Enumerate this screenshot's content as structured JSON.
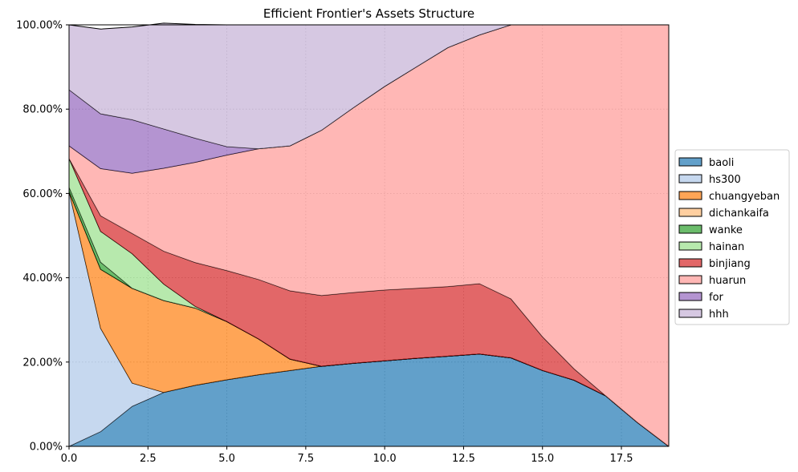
{
  "chart_data": {
    "type": "area",
    "stacked": true,
    "title": "Efficient Frontier's Assets Structure",
    "xlabel": "",
    "ylabel": "",
    "xlim": [
      0,
      19
    ],
    "ylim": [
      0,
      1
    ],
    "x_ticks": [
      0,
      2.5,
      5,
      7.5,
      10,
      12.5,
      15,
      17.5
    ],
    "x_tick_labels": [
      "0.0",
      "2.5",
      "5.0",
      "7.5",
      "10.0",
      "12.5",
      "15.0",
      "17.5"
    ],
    "y_ticks": [
      0,
      0.2,
      0.4,
      0.6,
      0.8,
      1.0
    ],
    "y_tick_labels": [
      "0.00%",
      "20.00%",
      "40.00%",
      "60.00%",
      "80.00%",
      "100.00%"
    ],
    "grid": true,
    "legend_position": "right",
    "x": [
      0,
      1,
      2,
      3,
      4,
      5,
      6,
      7,
      8,
      9,
      10,
      11,
      12,
      13,
      14,
      15,
      16,
      17,
      18,
      19
    ],
    "series": [
      {
        "name": "baoli",
        "color": "#1f77b4",
        "values": [
          0.0,
          0.035,
          0.095,
          0.128,
          0.145,
          0.158,
          0.17,
          0.18,
          0.19,
          0.197,
          0.203,
          0.209,
          0.214,
          0.219,
          0.21,
          0.18,
          0.157,
          0.12,
          0.057,
          0.0
        ]
      },
      {
        "name": "hs300",
        "color": "#aec7e8",
        "values": [
          0.605,
          0.245,
          0.055,
          0.0,
          0.0,
          0.0,
          0.0,
          0.0,
          0.0,
          0.0,
          0.0,
          0.0,
          0.0,
          0.0,
          0.0,
          0.0,
          0.0,
          0.0,
          0.0,
          0.0
        ]
      },
      {
        "name": "chuangyeban",
        "color": "#ff7f0e",
        "values": [
          0.0,
          0.14,
          0.225,
          0.218,
          0.183,
          0.138,
          0.085,
          0.027,
          0.0,
          0.0,
          0.0,
          0.0,
          0.0,
          0.0,
          0.0,
          0.0,
          0.0,
          0.0,
          0.0,
          0.0
        ]
      },
      {
        "name": "dichankaifa",
        "color": "#ffbb78",
        "values": [
          0.0,
          0.0,
          0.0,
          0.0,
          0.0,
          0.0,
          0.0,
          0.0,
          0.0,
          0.0,
          0.0,
          0.0,
          0.0,
          0.0,
          0.0,
          0.0,
          0.0,
          0.0,
          0.0,
          0.0
        ]
      },
      {
        "name": "wanke",
        "color": "#2ca02c",
        "values": [
          0.01,
          0.017,
          0.0,
          0.0,
          0.0,
          0.0,
          0.0,
          0.0,
          0.0,
          0.0,
          0.0,
          0.0,
          0.0,
          0.0,
          0.0,
          0.0,
          0.0,
          0.0,
          0.0,
          0.0
        ]
      },
      {
        "name": "hainan",
        "color": "#98df8a",
        "values": [
          0.068,
          0.073,
          0.082,
          0.039,
          0.004,
          0.0,
          0.0,
          0.0,
          0.0,
          0.0,
          0.0,
          0.0,
          0.0,
          0.0,
          0.0,
          0.0,
          0.0,
          0.0,
          0.0,
          0.0
        ]
      },
      {
        "name": "binjiang",
        "color": "#d62728",
        "values": [
          0.0,
          0.037,
          0.048,
          0.078,
          0.104,
          0.121,
          0.141,
          0.162,
          0.168,
          0.168,
          0.168,
          0.166,
          0.165,
          0.167,
          0.14,
          0.08,
          0.027,
          0.0,
          0.0,
          0.0
        ]
      },
      {
        "name": "huarun",
        "color": "#ff9896",
        "values": [
          0.03,
          0.112,
          0.143,
          0.197,
          0.238,
          0.274,
          0.31,
          0.344,
          0.392,
          0.438,
          0.483,
          0.525,
          0.567,
          0.59,
          0.65,
          0.74,
          0.816,
          0.88,
          0.943,
          1.0
        ]
      },
      {
        "name": "for",
        "color": "#9467bd",
        "values": [
          0.133,
          0.13,
          0.127,
          0.093,
          0.057,
          0.02,
          0.0,
          0.0,
          0.0,
          0.0,
          0.0,
          0.0,
          0.0,
          0.0,
          0.0,
          0.0,
          0.0,
          0.0,
          0.0,
          0.0
        ]
      },
      {
        "name": "hhh",
        "color": "#c5b0d5",
        "values": [
          0.154,
          0.201,
          0.22,
          0.251,
          0.27,
          0.289,
          0.294,
          0.287,
          0.25,
          0.197,
          0.146,
          0.1,
          0.054,
          0.024,
          0.0,
          0.0,
          0.0,
          0.0,
          0.0,
          0.0
        ]
      }
    ]
  }
}
